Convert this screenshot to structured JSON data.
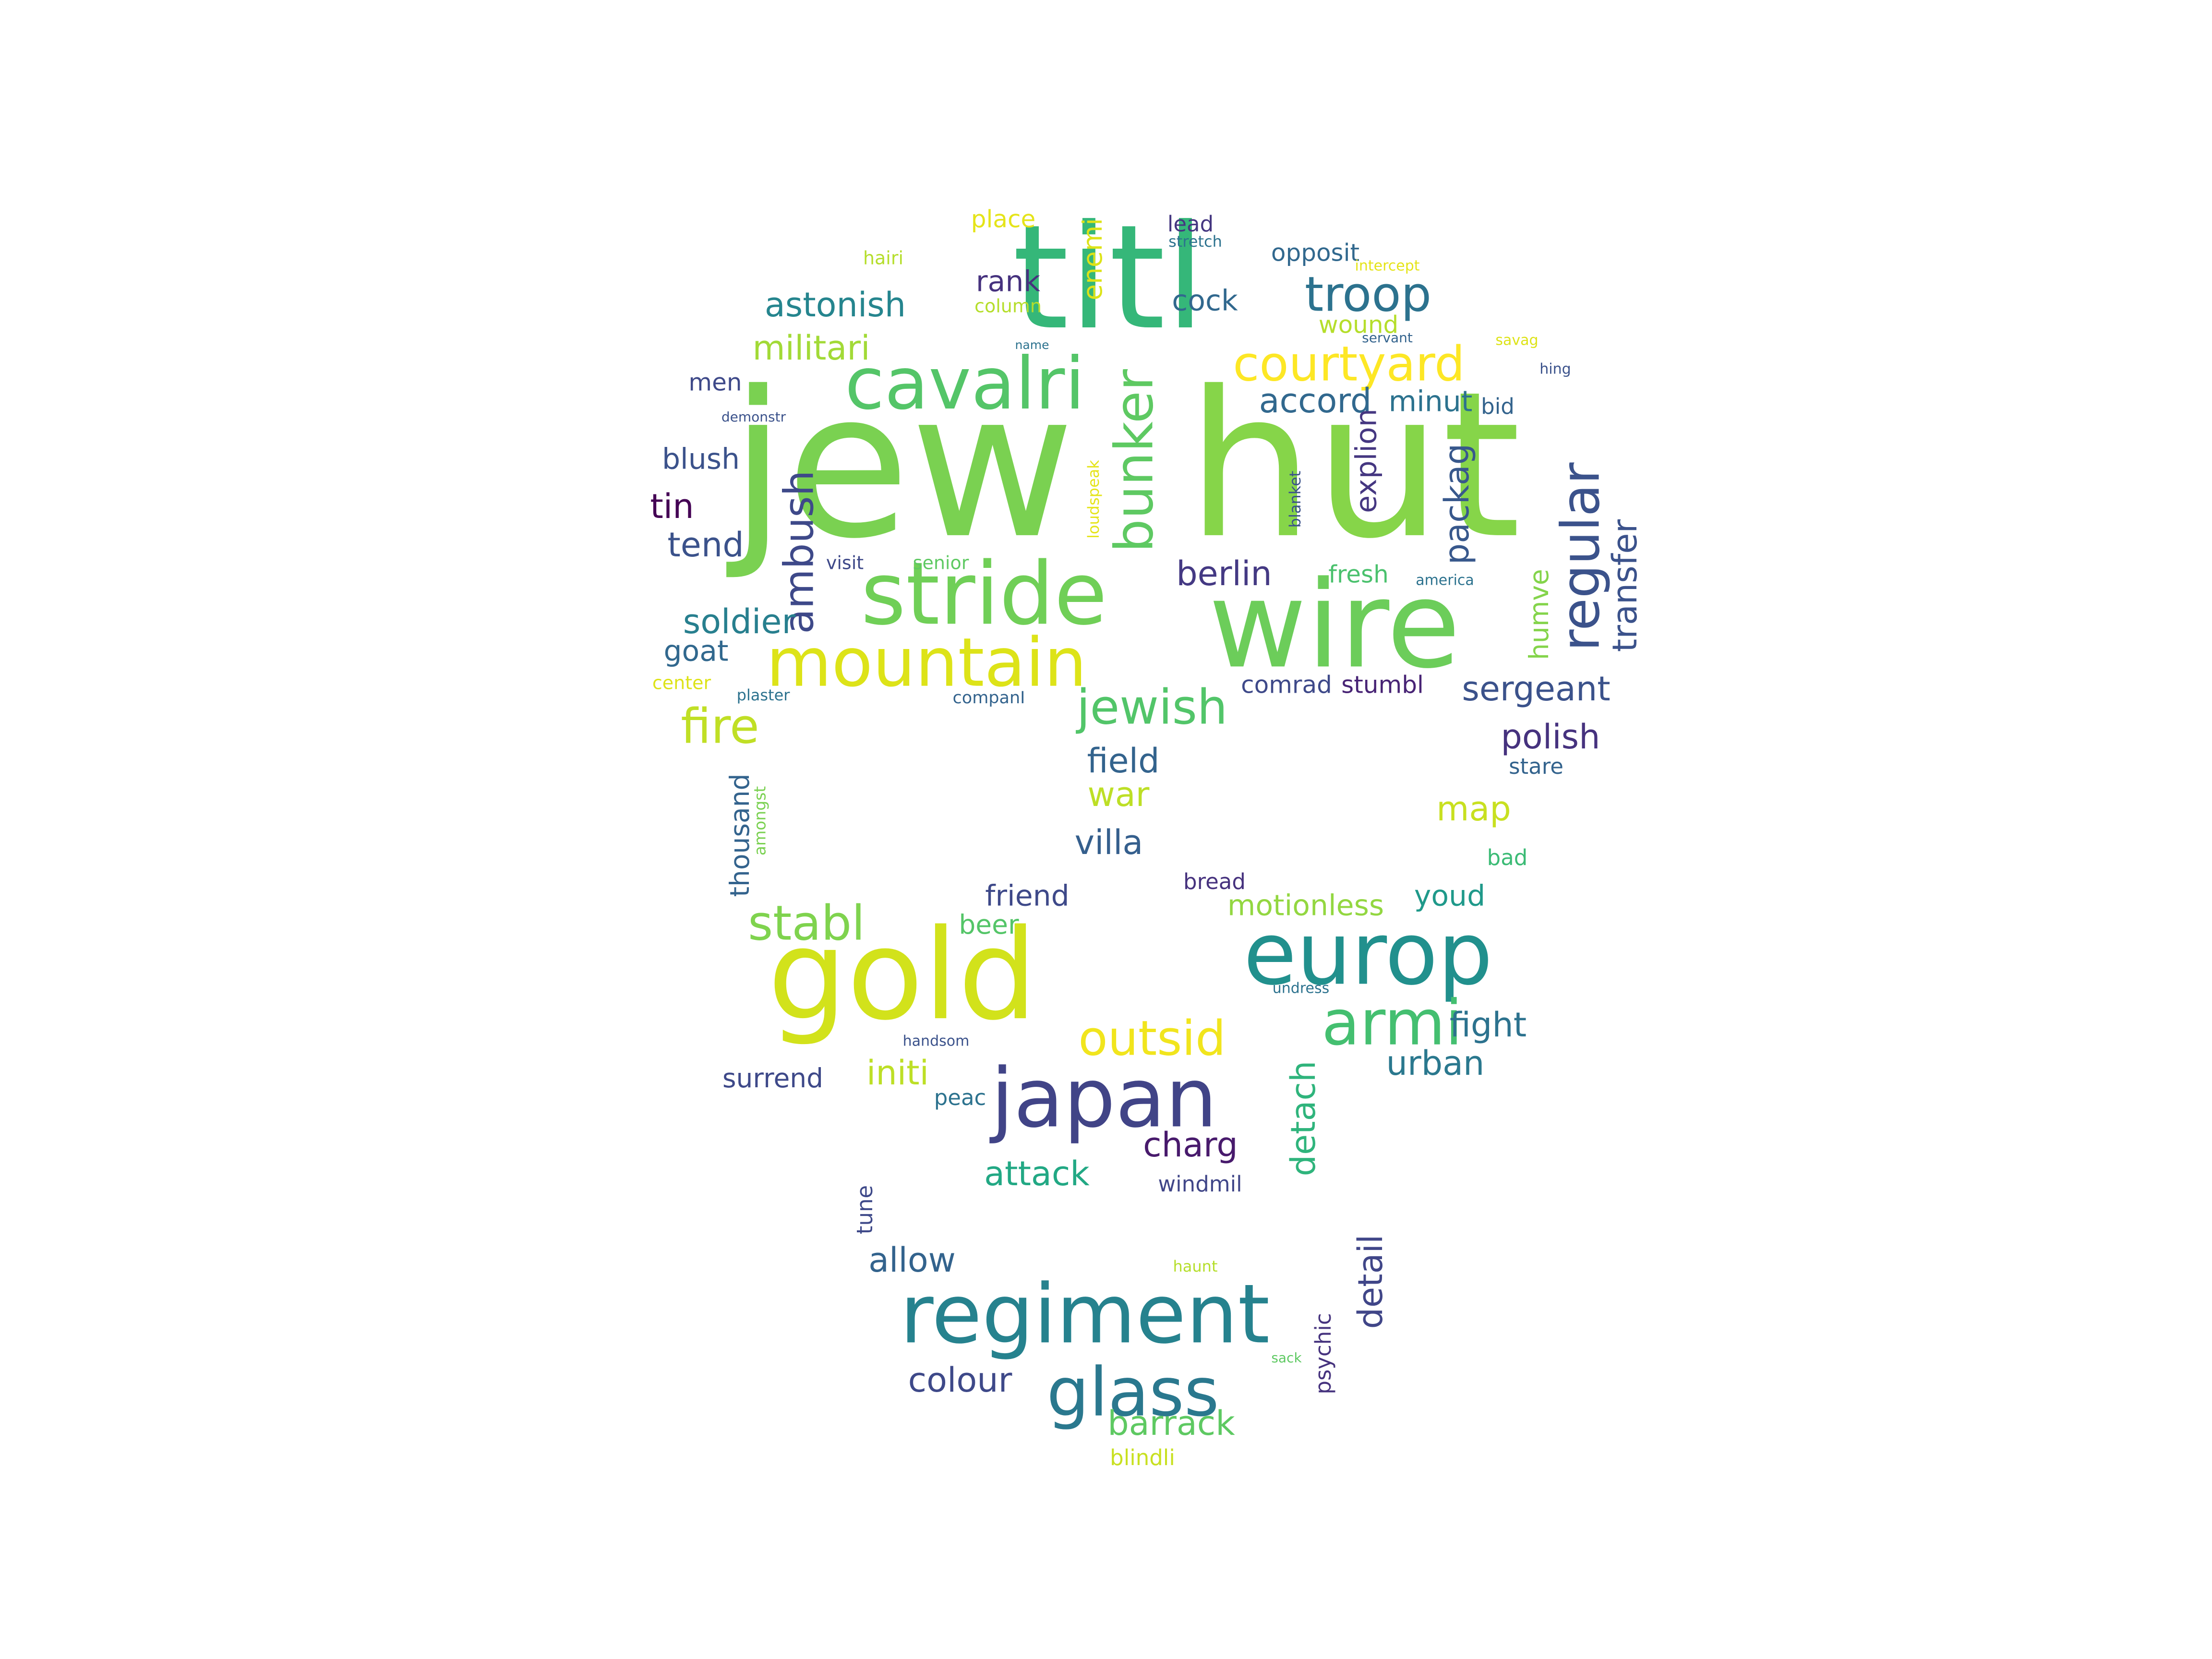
{
  "word_cloud": {
    "words": [
      {
        "text": "jew",
        "color": "#7ad151"
      },
      {
        "text": "hut",
        "color": "#86d549"
      },
      {
        "text": "titl",
        "color": "#35b779"
      },
      {
        "text": "wire",
        "color": "#6ccd5a"
      },
      {
        "text": "gold",
        "color": "#d2e21b"
      },
      {
        "text": "europ",
        "color": "#21908d"
      },
      {
        "text": "japan",
        "color": "#414487"
      },
      {
        "text": "regiment",
        "color": "#26828e"
      },
      {
        "text": "stride",
        "color": "#70cf57"
      },
      {
        "text": "cavalri",
        "color": "#54c568"
      },
      {
        "text": "mountain",
        "color": "#dde318"
      },
      {
        "text": "armi",
        "color": "#44bf70"
      },
      {
        "text": "glass",
        "color": "#2a788e"
      },
      {
        "text": "troop",
        "color": "#2c728e"
      },
      {
        "text": "courtyard",
        "color": "#fde725"
      },
      {
        "text": "bunker",
        "color": "#5ec962"
      },
      {
        "text": "regular",
        "color": "#3b528b"
      },
      {
        "text": "jewish",
        "color": "#52c569"
      },
      {
        "text": "fire",
        "color": "#c0df25"
      },
      {
        "text": "outsid",
        "color": "#f1e51d"
      },
      {
        "text": "stabl",
        "color": "#7fd34e"
      },
      {
        "text": "ambush",
        "color": "#3e4989"
      },
      {
        "text": "astonish",
        "color": "#25858e"
      },
      {
        "text": "militari",
        "color": "#a2da37"
      },
      {
        "text": "accord",
        "color": "#31688e"
      },
      {
        "text": "sergeant",
        "color": "#3b528b"
      },
      {
        "text": "berlin",
        "color": "#443983"
      },
      {
        "text": "soldier",
        "color": "#277f8e"
      },
      {
        "text": "field",
        "color": "#33638d"
      },
      {
        "text": "polish",
        "color": "#46327e"
      },
      {
        "text": "transfer",
        "color": "#3b528b"
      },
      {
        "text": "packag",
        "color": "#38588c"
      },
      {
        "text": "villa",
        "color": "#355f8d"
      },
      {
        "text": "tin",
        "color": "#440154"
      },
      {
        "text": "tend",
        "color": "#3b528b"
      },
      {
        "text": "initi",
        "color": "#bddf26"
      },
      {
        "text": "attack",
        "color": "#22a884"
      },
      {
        "text": "charg",
        "color": "#481a6c"
      },
      {
        "text": "detach",
        "color": "#2fb47c"
      },
      {
        "text": "urban",
        "color": "#2a788e"
      },
      {
        "text": "fight",
        "color": "#2c728e"
      },
      {
        "text": "detail",
        "color": "#404688"
      },
      {
        "text": "barrack",
        "color": "#5ec962"
      },
      {
        "text": "colour",
        "color": "#3e4989"
      },
      {
        "text": "allow",
        "color": "#33638d"
      },
      {
        "text": "map",
        "color": "#c8e020"
      },
      {
        "text": "war",
        "color": "#bddf26"
      },
      {
        "text": "explion",
        "color": "#453781"
      },
      {
        "text": "minut",
        "color": "#2c728e"
      },
      {
        "text": "blush",
        "color": "#3b528b"
      },
      {
        "text": "goat",
        "color": "#31688e"
      },
      {
        "text": "cock",
        "color": "#31688e"
      },
      {
        "text": "rank",
        "color": "#46327e"
      },
      {
        "text": "men",
        "color": "#3e4989"
      },
      {
        "text": "thousand",
        "color": "#33638d"
      },
      {
        "text": "friend",
        "color": "#3e4989"
      },
      {
        "text": "motionless",
        "color": "#93d741"
      },
      {
        "text": "youd",
        "color": "#1f998a"
      },
      {
        "text": "surrend",
        "color": "#3e4989"
      },
      {
        "text": "beer",
        "color": "#54c568"
      },
      {
        "text": "humve",
        "color": "#84d44b"
      },
      {
        "text": "comrad",
        "color": "#3e4989"
      },
      {
        "text": "stumbl",
        "color": "#482475"
      },
      {
        "text": "enemi",
        "color": "#dde318"
      },
      {
        "text": "opposit",
        "color": "#31688e"
      },
      {
        "text": "wound",
        "color": "#b5de2b"
      },
      {
        "text": "place",
        "color": "#e5e419"
      },
      {
        "text": "lead",
        "color": "#453781"
      },
      {
        "text": "fresh",
        "color": "#4ac16d"
      },
      {
        "text": "stare",
        "color": "#33638d"
      },
      {
        "text": "bread",
        "color": "#46327e"
      },
      {
        "text": "bad",
        "color": "#3bbb75"
      },
      {
        "text": "peac",
        "color": "#2c728e"
      },
      {
        "text": "windmil",
        "color": "#404688"
      },
      {
        "text": "psychic",
        "color": "#46337e"
      },
      {
        "text": "tune",
        "color": "#3e4989"
      },
      {
        "text": "blindli",
        "color": "#c8e020"
      },
      {
        "text": "bid",
        "color": "#33638d"
      },
      {
        "text": "hairi",
        "color": "#b5de2b"
      },
      {
        "text": "column",
        "color": "#b5de2b"
      },
      {
        "text": "visit",
        "color": "#3e4989"
      },
      {
        "text": "senior",
        "color": "#5ec962"
      },
      {
        "text": "center",
        "color": "#dde318"
      },
      {
        "text": "plaster",
        "color": "#2c728e"
      },
      {
        "text": "companI",
        "color": "#33638d"
      },
      {
        "text": "amongst",
        "color": "#7ad151"
      },
      {
        "text": "loudspeak",
        "color": "#e5e419"
      },
      {
        "text": "blanket",
        "color": "#3b528b"
      },
      {
        "text": "america",
        "color": "#2c728e"
      },
      {
        "text": "stretch",
        "color": "#2c728e"
      },
      {
        "text": "intercept",
        "color": "#e5e419"
      },
      {
        "text": "servant",
        "color": "#33638d"
      },
      {
        "text": "savag",
        "color": "#dde318"
      },
      {
        "text": "hing",
        "color": "#3b528b"
      },
      {
        "text": "demonstr",
        "color": "#3b528b"
      },
      {
        "text": "name",
        "color": "#2c728e"
      },
      {
        "text": "undress",
        "color": "#2c728e"
      },
      {
        "text": "handsom",
        "color": "#3b528b"
      },
      {
        "text": "haunt",
        "color": "#b5de2b"
      },
      {
        "text": "sack",
        "color": "#5ec962"
      }
    ]
  }
}
